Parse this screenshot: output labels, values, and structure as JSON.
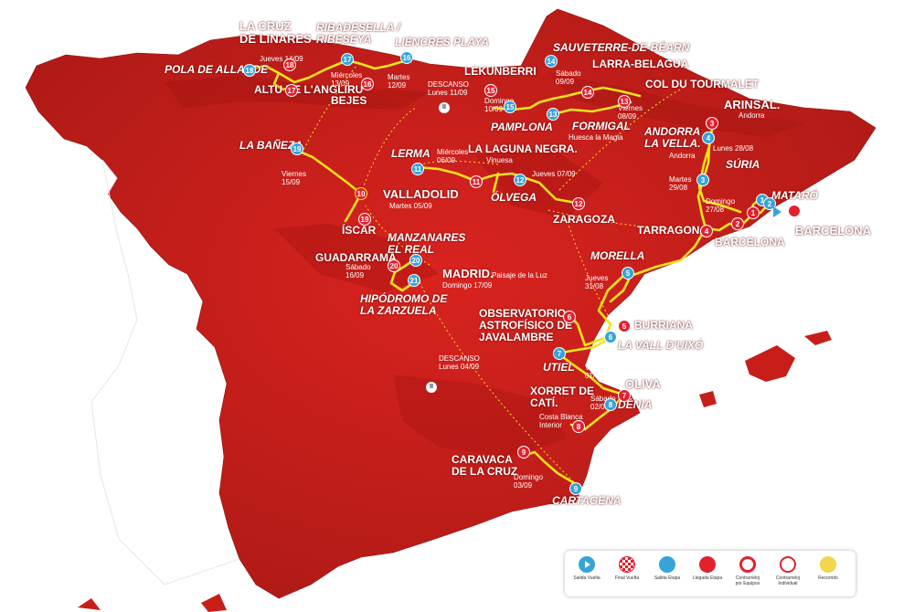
{
  "places": {
    "la_cruz": "LA CRUZ\nDE LINARES",
    "ribadesella": "RIBADESELLA /\nRIBESEYA",
    "liencres": "LIENCRES PLAYA",
    "sauveterre": "SAUVETERRE-DE-BÉARN",
    "larra": "LARRA-BELAGUA",
    "lekunberri": "LEKUNBERRI",
    "tourmalet": "COL DU TOURMALET",
    "pola": "POLA DE ALLANDE",
    "angliru": "ALTU DE L'ANGLIRU",
    "bejes": "BEJES",
    "pamplona": "PAMPLONA",
    "formigal": "FORMIGAL",
    "formigal_sub": "Huesca la Magia",
    "arinsal": "ARINSAL.",
    "arinsal_sub": "Andorra",
    "andorra_vella": "ANDORRA\nLA VELLA.",
    "andorra_vella_sub": "Andorra",
    "la_baneza": "LA BAÑEZA",
    "lerma": "LERMA",
    "laguna": "LA LAGUNA NEGRA.",
    "laguna_sub": "Vinuesa",
    "suria": "SÚRIA",
    "mataro": "MATARÓ",
    "valladolid": "VALLADOLID",
    "olvega": "ÓLVEGA",
    "zaragoza": "ZARAGOZA",
    "barcelona_e": "BARCELONA",
    "barcelona": "BARCELONA",
    "tarragona": "TARRAGONA",
    "iscar": "ÍSCAR",
    "manzanares": "MANZANARES\nEL REAL",
    "guadarrama": "GUADARRAMA",
    "madrid": "MADRID.",
    "madrid_sub": "Paisaje de la Luz",
    "hipodromo": "HIPÓDROMO DE\nLA ZARZUELA",
    "morella": "MORELLA",
    "observatorio": "OBSERVATORIO\nASTROFÍSICO DE\nJAVALAMBRE",
    "burriana": "BURRIANA",
    "vall_uixo": "LA VALL D'UIXÓ",
    "utiel": "UTIEL",
    "oliva": "OLIVA",
    "xorret": "XORRET DE\nCATÍ.",
    "xorret_sub": "Costa Blanca\nInterior",
    "denia": "DÉNIA",
    "caravaca": "CARAVACA\nDE LA CRUZ",
    "cartagena": "CARTAGENA"
  },
  "dates": {
    "d14": "Jueves 14/09",
    "d13": "Miércoles\n13/09",
    "d12": "Martes\n12/09",
    "rest2": "DESCANSO\nLunes 11/09",
    "d10": "Domingo\n10/09",
    "d09": "Sábado\n09/09",
    "d08": "Viernes\n08/09",
    "d06": "Miércoles\n06/09",
    "d07": "Jueves 07/09",
    "d15": "Viernes\n15/09",
    "d05": "Martes 05/09",
    "d28": "Lunes 28/08",
    "d29": "Martes\n29/08",
    "d27": "Domingo\n27/08",
    "d26": "Sábado 26/08",
    "d16": "Sábado\n16/09",
    "d17": "Domingo 17/09",
    "d31": "Jueves\n31/08",
    "d30": "Miércoles\n30/08",
    "rest1": "DESCANSO\nLunes 04/09",
    "d01": "Viernes\n01/09",
    "d02": "Sábado\n02/09",
    "d03": "Domingo\n03/09"
  },
  "stage_numbers": [
    "1",
    "2",
    "3",
    "4",
    "5",
    "6",
    "7",
    "8",
    "9",
    "10",
    "11",
    "12",
    "13",
    "14",
    "15",
    "16",
    "17",
    "18",
    "19",
    "20",
    "21"
  ],
  "rest_symbol": "II",
  "legend": [
    {
      "label": "Salida Vuelta",
      "icon": "play-icon",
      "color": "#36a3d9"
    },
    {
      "label": "Final Vuelta",
      "icon": "checkered-flag-icon",
      "color": "#e3202e"
    },
    {
      "label": "Salida Etapa",
      "icon": "start-stage-icon",
      "color": "#36a3d9"
    },
    {
      "label": "Llegada Etapa",
      "icon": "finish-stage-icon",
      "color": "#e3202e"
    },
    {
      "label": "Contrarreloj\npor Equipos",
      "icon": "team-time-trial-icon",
      "color": "#e3202e"
    },
    {
      "label": "Contrarreloj\nIndividual",
      "icon": "individual-time-trial-icon",
      "color": "#e3202e"
    },
    {
      "label": "Recorrido",
      "icon": "route-icon",
      "color": "#f2d64b"
    }
  ],
  "colors": {
    "land": "#d9231f",
    "land_dark": "#a81511",
    "route": "#f2e21c",
    "sea": "#ffffff",
    "neighbor": "#ffffff"
  }
}
